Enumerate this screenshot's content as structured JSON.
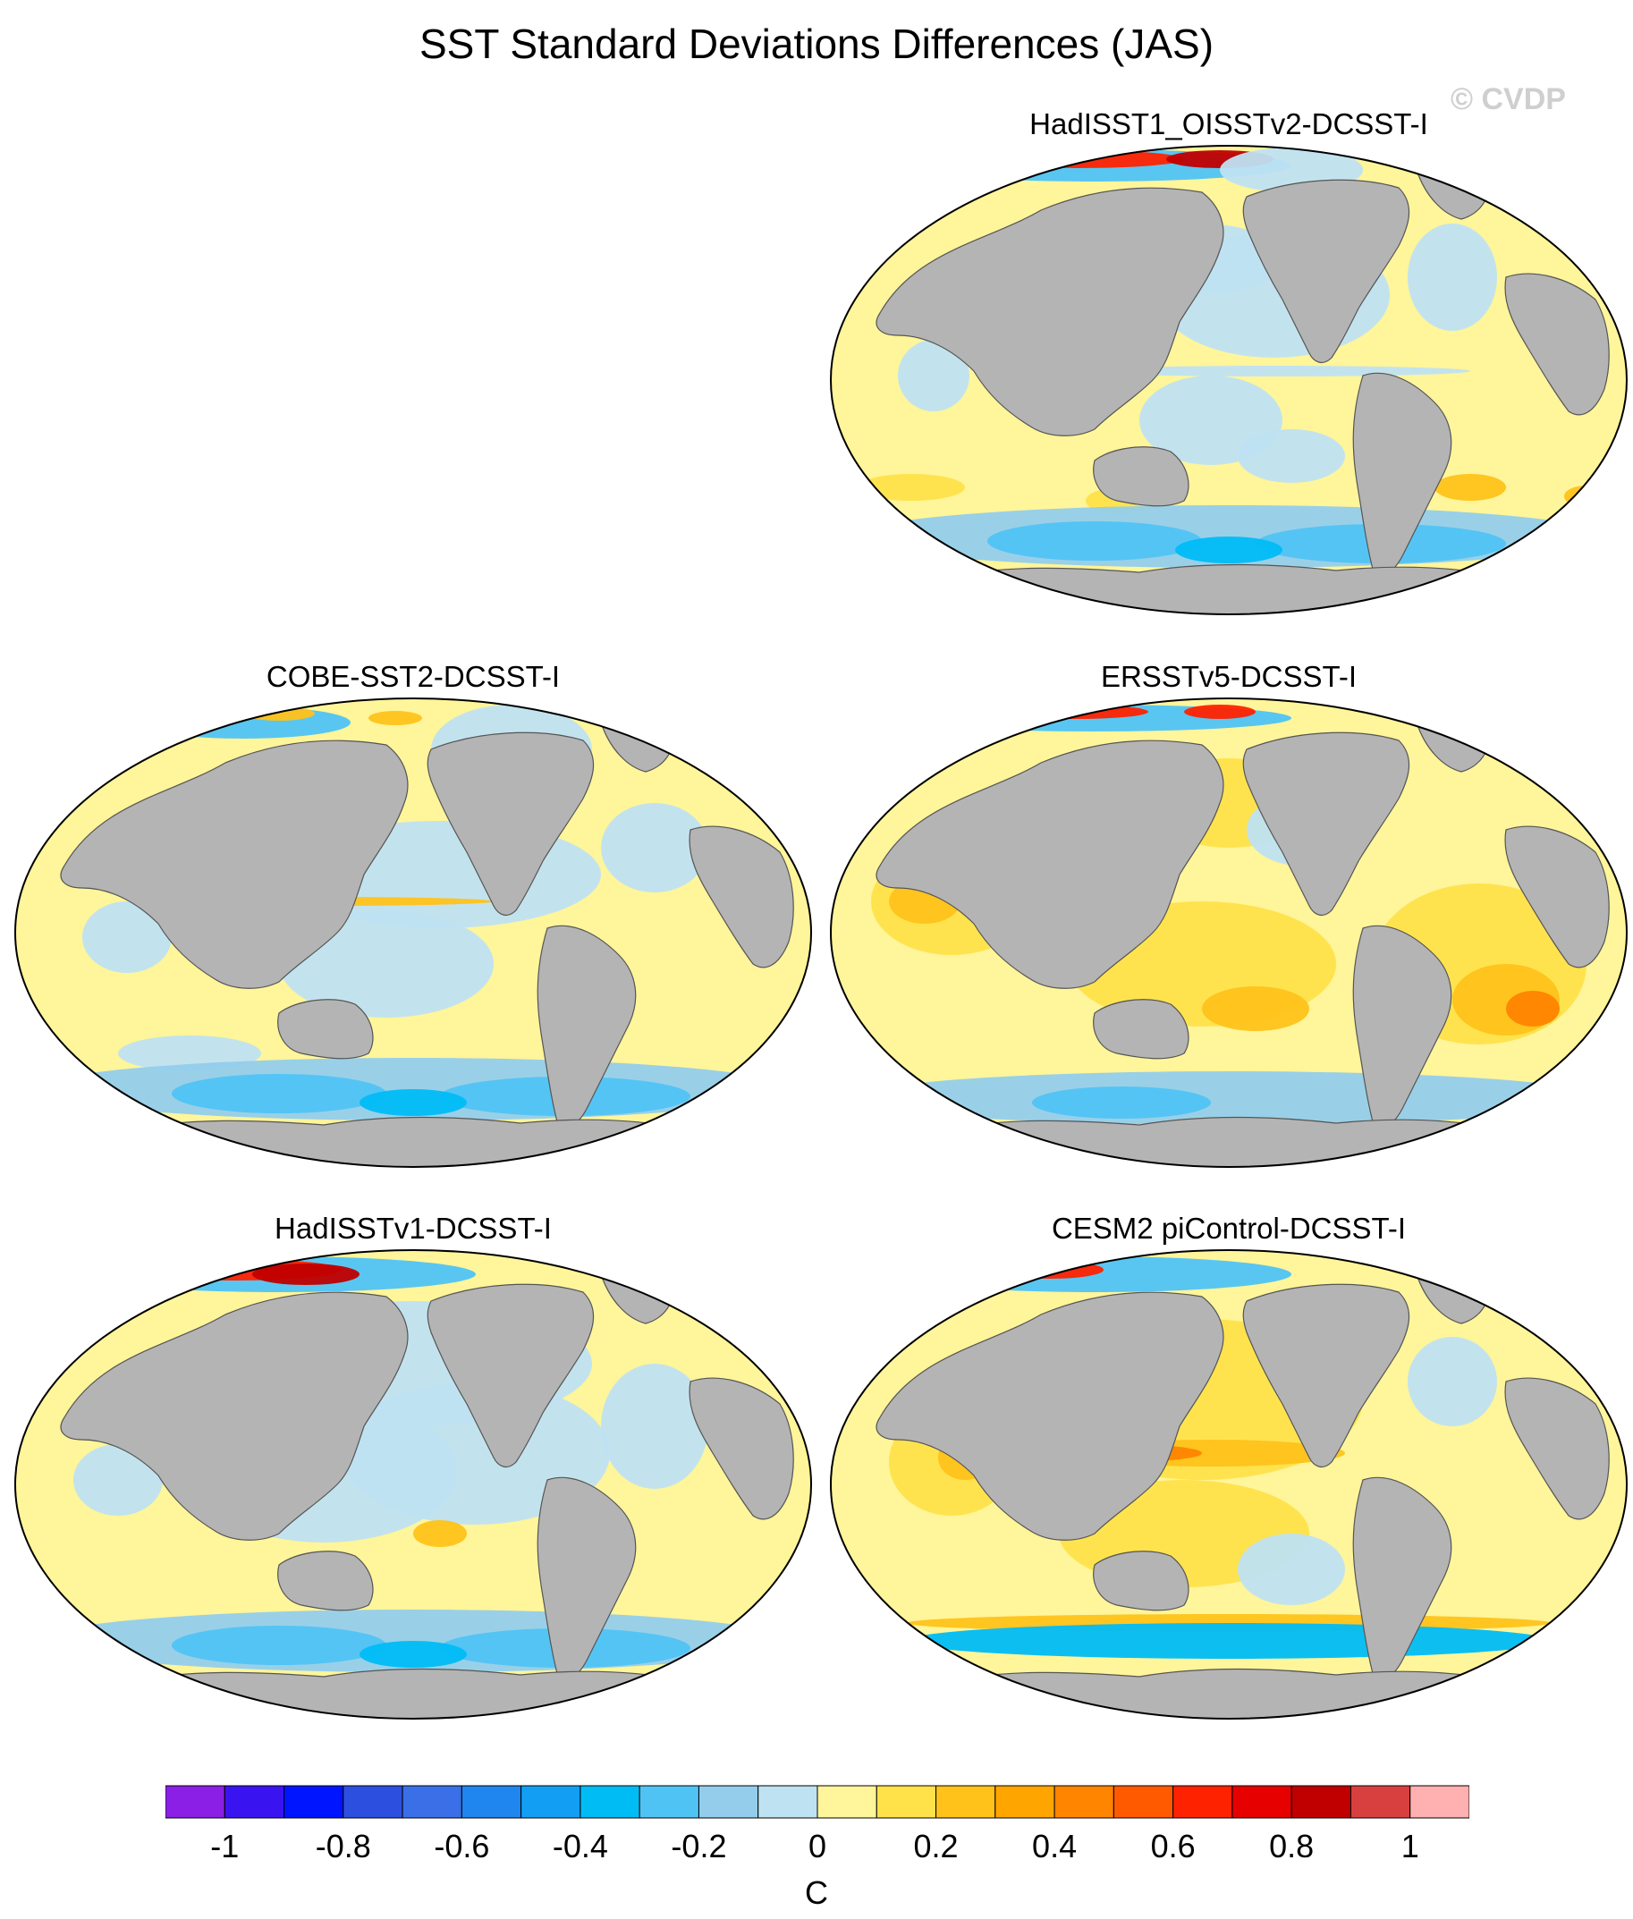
{
  "figure": {
    "title": "SST Standard Deviations Differences (JAS)",
    "watermark": "© CVDP"
  },
  "panels": [
    {
      "id": "p1",
      "title": "HadISST1_OISSTv2-DCSST-I"
    },
    {
      "id": "p2",
      "title": "COBE-SST2-DCSST-I"
    },
    {
      "id": "p3",
      "title": "ERSSTv5-DCSST-I"
    },
    {
      "id": "p4",
      "title": "HadISSTv1-DCSST-I"
    },
    {
      "id": "p5",
      "title": "CESM2 piControl-DCSST-I"
    }
  ],
  "colors": {
    "land": "#b4b4b4",
    "ocean_base": "#fff59a",
    "palette": [
      "#8b1fe6",
      "#3a14f0",
      "#0015ff",
      "#2d4fe0",
      "#3a6fe8",
      "#1f86f0",
      "#129ef3",
      "#00bcf5",
      "#50c3f5",
      "#93cdeb",
      "#bfe2f2",
      "#fff59a",
      "#ffe24a",
      "#ffc21a",
      "#ffa500",
      "#ff8400",
      "#ff5a00",
      "#ff2200",
      "#e60000",
      "#c00000",
      "#d84040",
      "#ffb0b0"
    ]
  },
  "colorbar": {
    "units": "C",
    "labels": [
      "-1",
      "-0.8",
      "-0.6",
      "-0.4",
      "-0.2",
      "0",
      "0.2",
      "0.4",
      "0.6",
      "0.8",
      "1"
    ]
  }
}
